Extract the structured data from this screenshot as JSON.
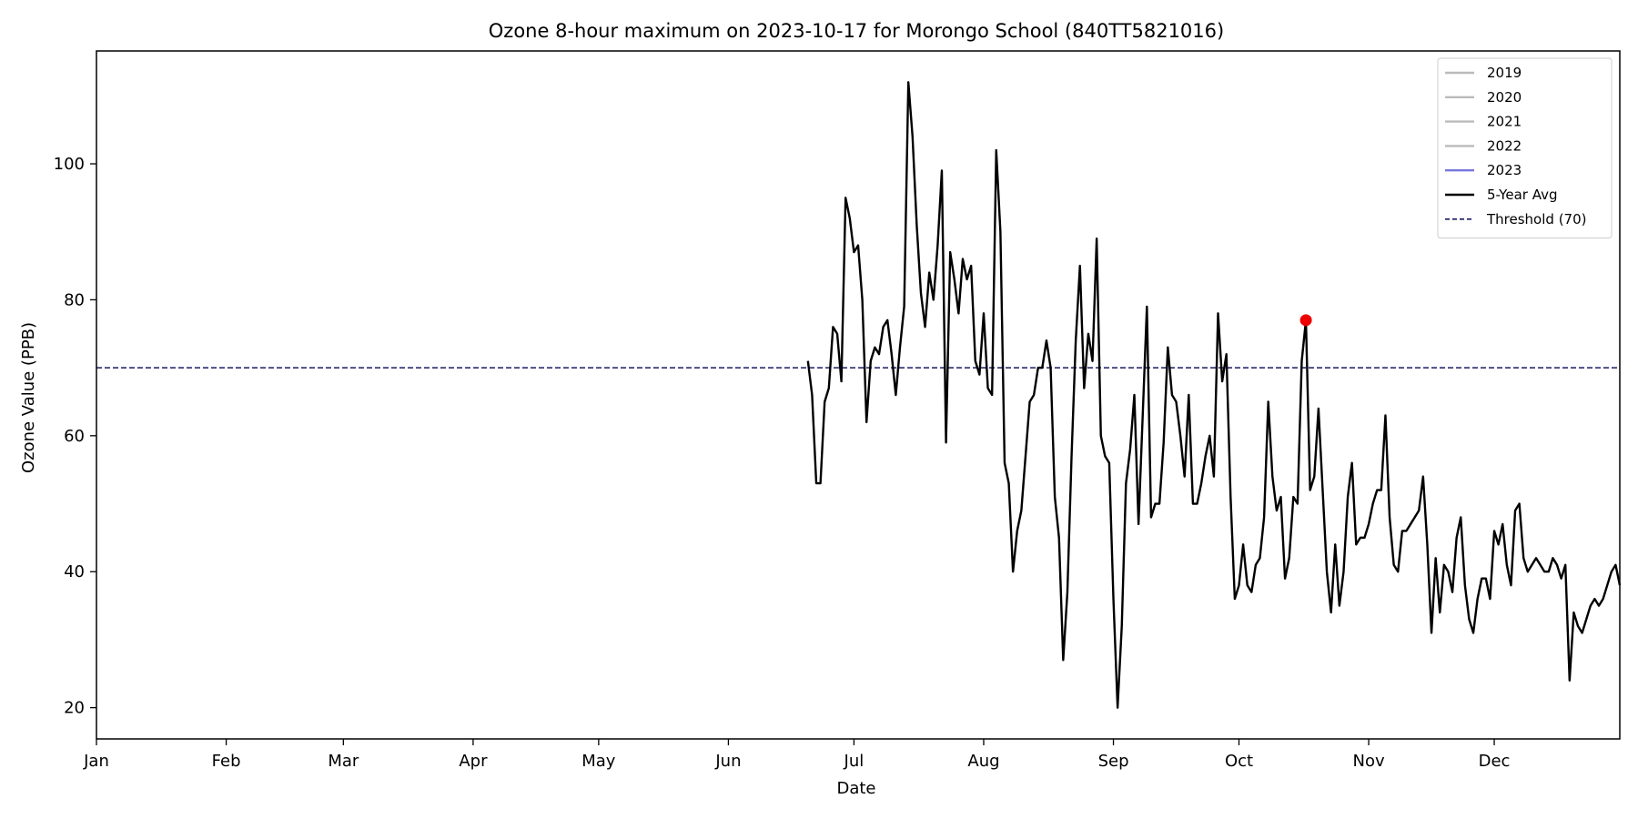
{
  "chart_data": {
    "type": "line",
    "title": "Ozone 8-hour maximum on 2023-10-17 for Morongo School (840TT5821016)",
    "xlabel": "Date",
    "ylabel": "Ozone Value (PPB)",
    "x_ticks": [
      "Jan",
      "Feb",
      "Mar",
      "Apr",
      "May",
      "Jun",
      "Jul",
      "Aug",
      "Sep",
      "Oct",
      "Nov",
      "Dec"
    ],
    "y_ticks": [
      20,
      40,
      60,
      80,
      100
    ],
    "ylim": [
      15.4,
      116.6
    ],
    "xlim": [
      "2023-01-01",
      "2023-12-31"
    ],
    "grid": false,
    "legend_position": "top-right",
    "legend": [
      {
        "label": "2019",
        "color": "#bbbbbb",
        "style": "solid"
      },
      {
        "label": "2020",
        "color": "#bbbbbb",
        "style": "solid"
      },
      {
        "label": "2021",
        "color": "#bbbbbb",
        "style": "solid"
      },
      {
        "label": "2022",
        "color": "#bbbbbb",
        "style": "solid"
      },
      {
        "label": "2023",
        "color": "#7777dd",
        "style": "solid"
      },
      {
        "label": "5-Year Avg",
        "color": "#000000",
        "style": "solid"
      },
      {
        "label": "Threshold (70)",
        "color": "#1a1a66",
        "style": "dashed"
      }
    ],
    "threshold": {
      "value": 70,
      "color": "#1a1a66"
    },
    "highlight": {
      "date": "2023-10-17",
      "value": 77,
      "color": "#ee0000"
    },
    "series": [
      {
        "name": "5-Year Avg",
        "color": "#000000",
        "start_date": "2023-06-20",
        "values": [
          71,
          66,
          53,
          53,
          65,
          67,
          76,
          75,
          68,
          95,
          92,
          87,
          88,
          80,
          62,
          71,
          73,
          72,
          76,
          77,
          72,
          66,
          73,
          79,
          112,
          104,
          91,
          81,
          76,
          84,
          80,
          88,
          99,
          59,
          87,
          83,
          78,
          86,
          83,
          85,
          71,
          69,
          78,
          67,
          66,
          102,
          90,
          56,
          53,
          40,
          46,
          49,
          57,
          65,
          66,
          70,
          70,
          74,
          70,
          51,
          45,
          27,
          37,
          57,
          74,
          85,
          67,
          75,
          71,
          89,
          60,
          57,
          56,
          36,
          20,
          32,
          53,
          58,
          66,
          47,
          63,
          79,
          48,
          50,
          50,
          59,
          73,
          66,
          65,
          60,
          54,
          66,
          50,
          50,
          53,
          57,
          60,
          54,
          78,
          68,
          72,
          51,
          36,
          38,
          44,
          38,
          37,
          41,
          42,
          48,
          65,
          54,
          49,
          51,
          39,
          42,
          51,
          50,
          71,
          77,
          52,
          54,
          64,
          52,
          40,
          34,
          44,
          35,
          40,
          51,
          56,
          44,
          45,
          45,
          47,
          50,
          52,
          52,
          63,
          48,
          41,
          40,
          46,
          46,
          47,
          48,
          49,
          54,
          44,
          31,
          42,
          34,
          41,
          40,
          37,
          45,
          48,
          38,
          33,
          31,
          36,
          39,
          39,
          36,
          46,
          44,
          47,
          41,
          38,
          49,
          50,
          42,
          40,
          41,
          42,
          41,
          40,
          40,
          42,
          41,
          39,
          41,
          24,
          34,
          32,
          31,
          33,
          35,
          36,
          35,
          36,
          38,
          40,
          41,
          38
        ]
      }
    ]
  }
}
